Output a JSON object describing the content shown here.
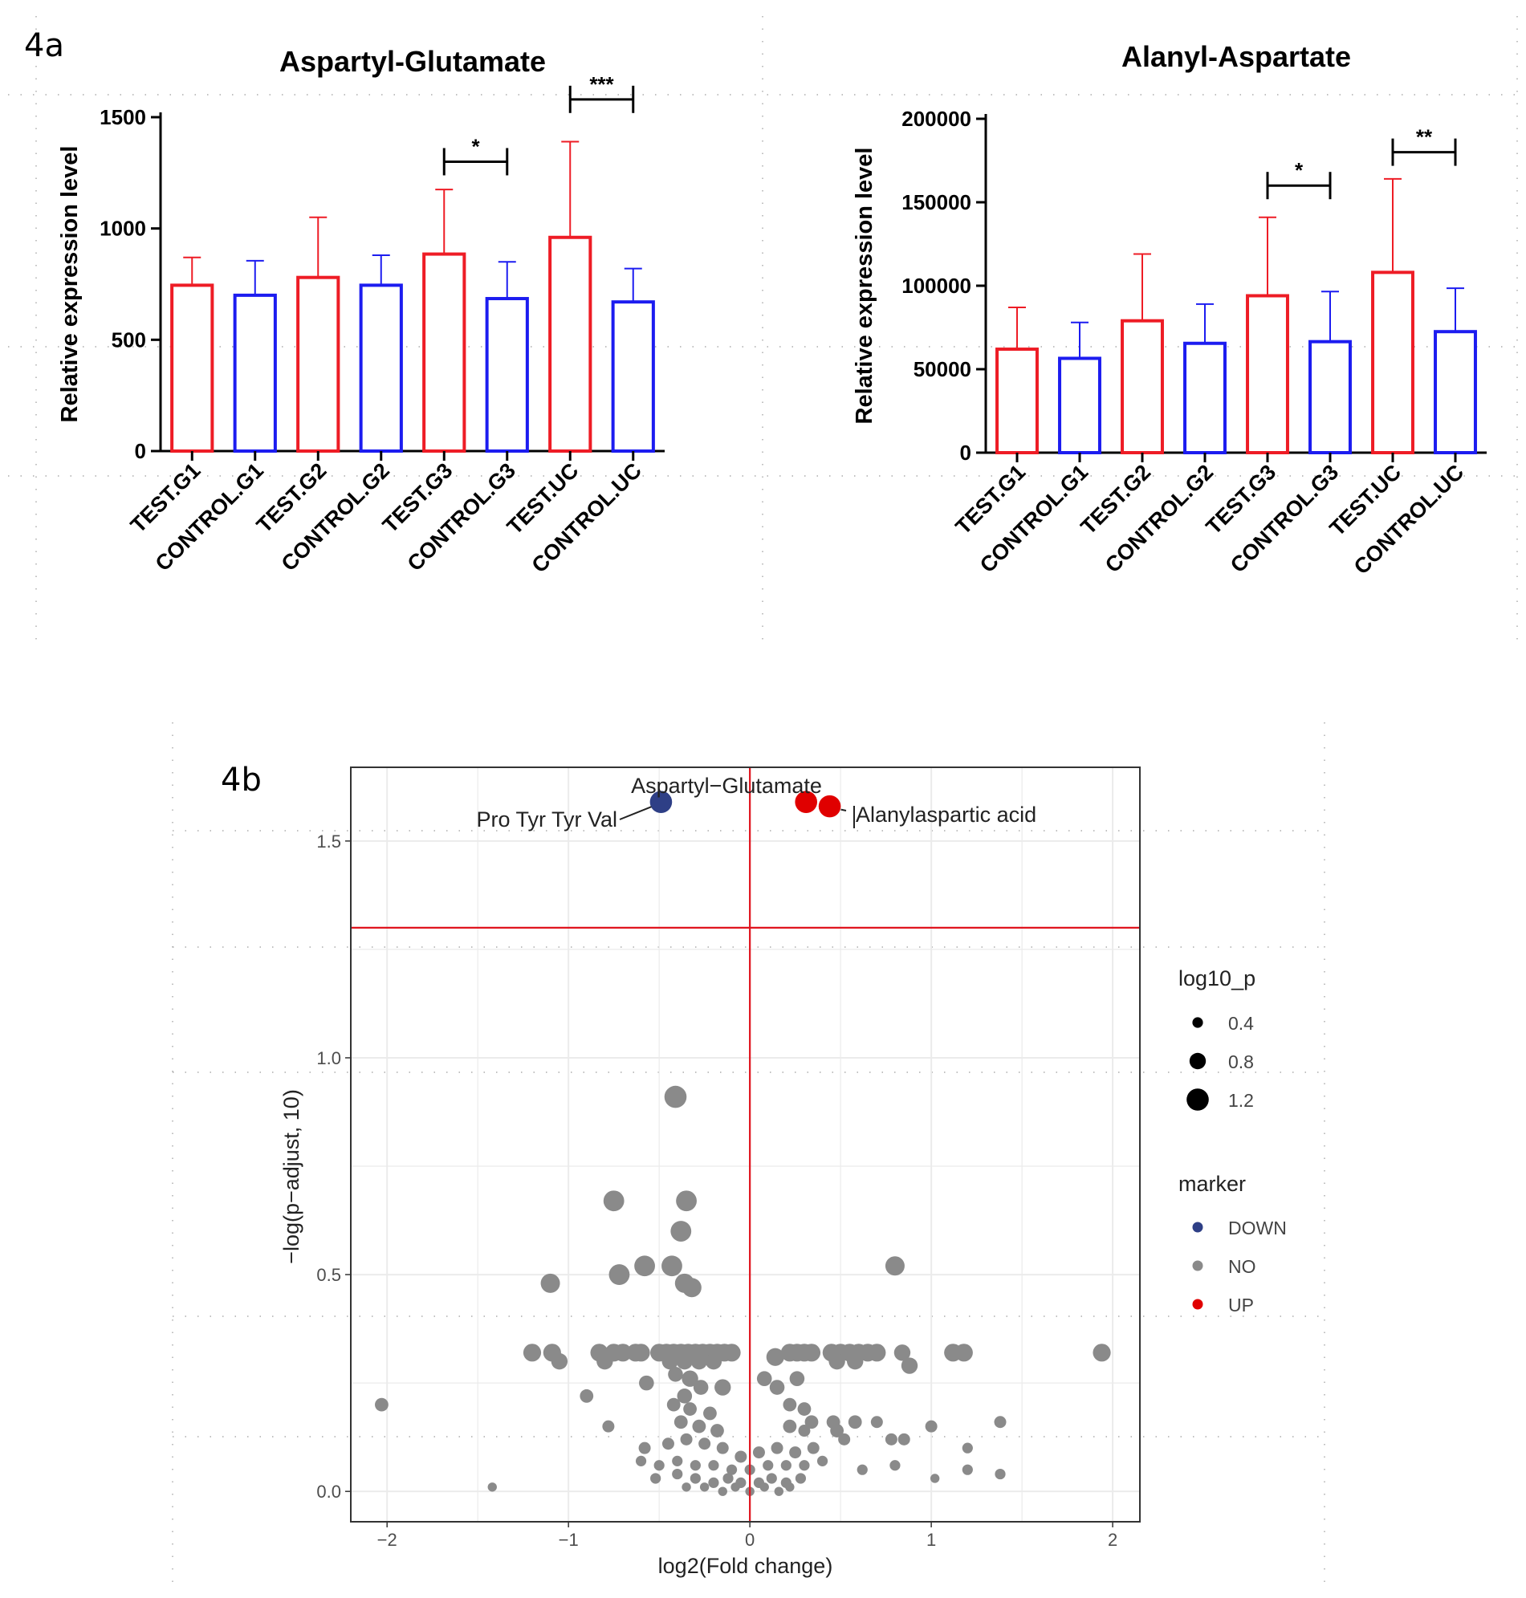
{
  "panels": {
    "a_label": "4a",
    "b_label": "4b"
  },
  "colors": {
    "test": "#ee1c25",
    "control": "#1c1cf0",
    "down": "#2e3f86",
    "no": "#8a8a8a",
    "up": "#e00000",
    "threshold": "#e0141e",
    "grid": "#ebebeb"
  },
  "chart_data": [
    {
      "type": "bar",
      "title": "Aspartyl-Glutamate",
      "xlabel": "",
      "ylabel": "Relative expression level",
      "ylim": [
        0,
        1500
      ],
      "yticks": [
        0,
        500,
        1000,
        1500
      ],
      "ytick_labels": [
        "0",
        "500",
        "1000",
        "1500"
      ],
      "categories": [
        "TEST.G1",
        "CONTROL.G1",
        "TEST.G2",
        "CONTROL.G2",
        "TEST.G3",
        "CONTROL.G3",
        "TEST.UC",
        "CONTROL.UC"
      ],
      "groups": [
        "test",
        "control",
        "test",
        "control",
        "test",
        "control",
        "test",
        "control"
      ],
      "values": [
        745,
        700,
        780,
        745,
        885,
        685,
        960,
        670
      ],
      "error_upper": [
        870,
        855,
        1050,
        880,
        1175,
        850,
        1390,
        820
      ],
      "significance": [
        {
          "from": 4,
          "to": 5,
          "y": 1300,
          "label": "*"
        },
        {
          "from": 6,
          "to": 7,
          "y": 1580,
          "label": "***"
        }
      ]
    },
    {
      "type": "bar",
      "title": "Alanyl-Aspartate",
      "xlabel": "",
      "ylabel": "Relative expression level",
      "ylim": [
        0,
        200000
      ],
      "yticks": [
        0,
        50000,
        100000,
        150000,
        200000
      ],
      "ytick_labels": [
        "0",
        "50000",
        "100000",
        "150000",
        "200000"
      ],
      "categories": [
        "TEST.G1",
        "CONTROL.G1",
        "TEST.G2",
        "CONTROL.G2",
        "TEST.G3",
        "CONTROL.G3",
        "TEST.UC",
        "CONTROL.UC"
      ],
      "groups": [
        "test",
        "control",
        "test",
        "control",
        "test",
        "control",
        "test",
        "control"
      ],
      "values": [
        62000,
        56500,
        79000,
        65500,
        94000,
        66500,
        108000,
        72500
      ],
      "error_upper": [
        87000,
        78000,
        119000,
        89000,
        141000,
        96500,
        164000,
        98500
      ],
      "significance": [
        {
          "from": 4,
          "to": 5,
          "y": 160000,
          "label": "*"
        },
        {
          "from": 6,
          "to": 7,
          "y": 180000,
          "label": "**"
        }
      ]
    },
    {
      "type": "scatter",
      "title": "",
      "xlabel": "log2(Fold change)",
      "ylabel": "−log(p−adjust, 10)",
      "xlim": [
        -2.2,
        2.15
      ],
      "ylim": [
        -0.07,
        1.67
      ],
      "xticks": [
        -2,
        -1,
        0,
        1,
        2
      ],
      "xtick_labels": [
        "−2",
        "−1",
        "0",
        "1",
        "2"
      ],
      "yticks": [
        0.0,
        0.5,
        1.0,
        1.5
      ],
      "ytick_labels": [
        "0.0",
        "0.5",
        "1.0",
        "1.5"
      ],
      "thresholds": {
        "x": 0,
        "y": 1.3
      },
      "labels": [
        {
          "text": "Aspartyl−Glutamate",
          "x": 0.38,
          "y": 1.59
        },
        {
          "text": "Pro Tyr Tyr Val",
          "x": -0.49,
          "y": 1.59
        },
        {
          "text": "Alanylaspartic acid",
          "x": 0.44,
          "y": 1.58
        }
      ],
      "legend": {
        "size_title": "log10_p",
        "sizes": [
          {
            "label": "0.4",
            "value": 0.4
          },
          {
            "label": "0.8",
            "value": 0.8
          },
          {
            "label": "1.2",
            "value": 1.2
          }
        ],
        "marker_title": "marker",
        "markers": [
          {
            "label": "DOWN",
            "key": "down"
          },
          {
            "label": "NO",
            "key": "no"
          },
          {
            "label": "UP",
            "key": "up"
          }
        ]
      },
      "points": [
        {
          "x": 0.31,
          "y": 1.59,
          "m": "up",
          "s": 1.2
        },
        {
          "x": 0.44,
          "y": 1.58,
          "m": "up",
          "s": 1.2
        },
        {
          "x": -0.49,
          "y": 1.59,
          "m": "down",
          "s": 1.2
        },
        {
          "x": -0.41,
          "y": 0.91,
          "m": "no",
          "s": 1.2
        },
        {
          "x": -0.35,
          "y": 0.67,
          "m": "no",
          "s": 1.1
        },
        {
          "x": -0.75,
          "y": 0.67,
          "m": "no",
          "s": 1.1
        },
        {
          "x": -0.38,
          "y": 0.6,
          "m": "no",
          "s": 1.1
        },
        {
          "x": -0.58,
          "y": 0.52,
          "m": "no",
          "s": 1.1
        },
        {
          "x": -0.43,
          "y": 0.52,
          "m": "no",
          "s": 1.1
        },
        {
          "x": -0.72,
          "y": 0.5,
          "m": "no",
          "s": 1.1
        },
        {
          "x": -1.1,
          "y": 0.48,
          "m": "no",
          "s": 1.0
        },
        {
          "x": -0.36,
          "y": 0.48,
          "m": "no",
          "s": 1.0
        },
        {
          "x": -0.32,
          "y": 0.47,
          "m": "no",
          "s": 1.0
        },
        {
          "x": 0.8,
          "y": 0.52,
          "m": "no",
          "s": 1.0
        },
        {
          "x": -1.2,
          "y": 0.32,
          "m": "no",
          "s": 0.9
        },
        {
          "x": -1.09,
          "y": 0.32,
          "m": "no",
          "s": 0.9
        },
        {
          "x": -1.05,
          "y": 0.3,
          "m": "no",
          "s": 0.8
        },
        {
          "x": -0.83,
          "y": 0.32,
          "m": "no",
          "s": 0.9
        },
        {
          "x": -0.8,
          "y": 0.3,
          "m": "no",
          "s": 0.8
        },
        {
          "x": -0.75,
          "y": 0.32,
          "m": "no",
          "s": 0.9
        },
        {
          "x": -0.7,
          "y": 0.32,
          "m": "no",
          "s": 0.9
        },
        {
          "x": -0.63,
          "y": 0.32,
          "m": "no",
          "s": 0.9
        },
        {
          "x": -0.6,
          "y": 0.32,
          "m": "no",
          "s": 0.9
        },
        {
          "x": -0.5,
          "y": 0.32,
          "m": "no",
          "s": 0.9
        },
        {
          "x": -0.46,
          "y": 0.32,
          "m": "no",
          "s": 0.9
        },
        {
          "x": -0.42,
          "y": 0.32,
          "m": "no",
          "s": 0.9
        },
        {
          "x": -0.38,
          "y": 0.32,
          "m": "no",
          "s": 0.9
        },
        {
          "x": -0.34,
          "y": 0.32,
          "m": "no",
          "s": 0.9
        },
        {
          "x": -0.3,
          "y": 0.32,
          "m": "no",
          "s": 0.9
        },
        {
          "x": -0.26,
          "y": 0.32,
          "m": "no",
          "s": 0.9
        },
        {
          "x": -0.22,
          "y": 0.32,
          "m": "no",
          "s": 0.9
        },
        {
          "x": -0.18,
          "y": 0.32,
          "m": "no",
          "s": 0.9
        },
        {
          "x": -0.14,
          "y": 0.32,
          "m": "no",
          "s": 0.9
        },
        {
          "x": -0.1,
          "y": 0.32,
          "m": "no",
          "s": 0.9
        },
        {
          "x": -0.44,
          "y": 0.3,
          "m": "no",
          "s": 0.8
        },
        {
          "x": -0.36,
          "y": 0.3,
          "m": "no",
          "s": 0.8
        },
        {
          "x": -0.28,
          "y": 0.3,
          "m": "no",
          "s": 0.8
        },
        {
          "x": -0.2,
          "y": 0.3,
          "m": "no",
          "s": 0.8
        },
        {
          "x": 0.14,
          "y": 0.31,
          "m": "no",
          "s": 0.9
        },
        {
          "x": 0.22,
          "y": 0.32,
          "m": "no",
          "s": 0.9
        },
        {
          "x": 0.26,
          "y": 0.32,
          "m": "no",
          "s": 0.9
        },
        {
          "x": 0.3,
          "y": 0.32,
          "m": "no",
          "s": 0.9
        },
        {
          "x": 0.34,
          "y": 0.32,
          "m": "no",
          "s": 0.9
        },
        {
          "x": 0.45,
          "y": 0.32,
          "m": "no",
          "s": 0.9
        },
        {
          "x": 0.5,
          "y": 0.32,
          "m": "no",
          "s": 0.9
        },
        {
          "x": 0.55,
          "y": 0.32,
          "m": "no",
          "s": 0.9
        },
        {
          "x": 0.6,
          "y": 0.32,
          "m": "no",
          "s": 0.9
        },
        {
          "x": 0.65,
          "y": 0.32,
          "m": "no",
          "s": 0.9
        },
        {
          "x": 0.7,
          "y": 0.32,
          "m": "no",
          "s": 0.9
        },
        {
          "x": 0.48,
          "y": 0.3,
          "m": "no",
          "s": 0.8
        },
        {
          "x": 0.58,
          "y": 0.3,
          "m": "no",
          "s": 0.8
        },
        {
          "x": 0.84,
          "y": 0.32,
          "m": "no",
          "s": 0.8
        },
        {
          "x": 0.88,
          "y": 0.29,
          "m": "no",
          "s": 0.8
        },
        {
          "x": 1.12,
          "y": 0.32,
          "m": "no",
          "s": 0.9
        },
        {
          "x": 1.18,
          "y": 0.32,
          "m": "no",
          "s": 0.9
        },
        {
          "x": 1.94,
          "y": 0.32,
          "m": "no",
          "s": 0.9
        },
        {
          "x": -0.57,
          "y": 0.25,
          "m": "no",
          "s": 0.7
        },
        {
          "x": -0.41,
          "y": 0.27,
          "m": "no",
          "s": 0.7
        },
        {
          "x": -0.33,
          "y": 0.26,
          "m": "no",
          "s": 0.8
        },
        {
          "x": -0.27,
          "y": 0.24,
          "m": "no",
          "s": 0.7
        },
        {
          "x": -0.15,
          "y": 0.24,
          "m": "no",
          "s": 0.8
        },
        {
          "x": 0.08,
          "y": 0.26,
          "m": "no",
          "s": 0.7
        },
        {
          "x": 0.15,
          "y": 0.24,
          "m": "no",
          "s": 0.7
        },
        {
          "x": 0.26,
          "y": 0.26,
          "m": "no",
          "s": 0.7
        },
        {
          "x": -0.36,
          "y": 0.22,
          "m": "no",
          "s": 0.7
        },
        {
          "x": -0.9,
          "y": 0.22,
          "m": "no",
          "s": 0.6
        },
        {
          "x": -2.03,
          "y": 0.2,
          "m": "no",
          "s": 0.6
        },
        {
          "x": -0.78,
          "y": 0.15,
          "m": "no",
          "s": 0.5
        },
        {
          "x": -0.42,
          "y": 0.2,
          "m": "no",
          "s": 0.6
        },
        {
          "x": -0.33,
          "y": 0.19,
          "m": "no",
          "s": 0.6
        },
        {
          "x": -0.22,
          "y": 0.18,
          "m": "no",
          "s": 0.6
        },
        {
          "x": -0.38,
          "y": 0.16,
          "m": "no",
          "s": 0.6
        },
        {
          "x": -0.28,
          "y": 0.15,
          "m": "no",
          "s": 0.6
        },
        {
          "x": -0.18,
          "y": 0.14,
          "m": "no",
          "s": 0.6
        },
        {
          "x": 0.22,
          "y": 0.2,
          "m": "no",
          "s": 0.6
        },
        {
          "x": 0.3,
          "y": 0.19,
          "m": "no",
          "s": 0.6
        },
        {
          "x": 0.34,
          "y": 0.16,
          "m": "no",
          "s": 0.6
        },
        {
          "x": 0.46,
          "y": 0.16,
          "m": "no",
          "s": 0.6
        },
        {
          "x": 0.48,
          "y": 0.14,
          "m": "no",
          "s": 0.6
        },
        {
          "x": 0.58,
          "y": 0.16,
          "m": "no",
          "s": 0.6
        },
        {
          "x": 0.7,
          "y": 0.16,
          "m": "no",
          "s": 0.5
        },
        {
          "x": 0.22,
          "y": 0.15,
          "m": "no",
          "s": 0.6
        },
        {
          "x": 0.3,
          "y": 0.14,
          "m": "no",
          "s": 0.5
        },
        {
          "x": 0.52,
          "y": 0.12,
          "m": "no",
          "s": 0.5
        },
        {
          "x": 0.78,
          "y": 0.12,
          "m": "no",
          "s": 0.5
        },
        {
          "x": 1.0,
          "y": 0.15,
          "m": "no",
          "s": 0.5
        },
        {
          "x": 1.38,
          "y": 0.16,
          "m": "no",
          "s": 0.5
        },
        {
          "x": 0.85,
          "y": 0.12,
          "m": "no",
          "s": 0.5
        },
        {
          "x": 1.2,
          "y": 0.1,
          "m": "no",
          "s": 0.4
        },
        {
          "x": -0.58,
          "y": 0.1,
          "m": "no",
          "s": 0.5
        },
        {
          "x": -0.45,
          "y": 0.11,
          "m": "no",
          "s": 0.5
        },
        {
          "x": -0.35,
          "y": 0.12,
          "m": "no",
          "s": 0.5
        },
        {
          "x": -0.25,
          "y": 0.11,
          "m": "no",
          "s": 0.5
        },
        {
          "x": -0.15,
          "y": 0.1,
          "m": "no",
          "s": 0.5
        },
        {
          "x": -0.05,
          "y": 0.08,
          "m": "no",
          "s": 0.5
        },
        {
          "x": 0.05,
          "y": 0.09,
          "m": "no",
          "s": 0.5
        },
        {
          "x": 0.15,
          "y": 0.1,
          "m": "no",
          "s": 0.5
        },
        {
          "x": 0.25,
          "y": 0.09,
          "m": "no",
          "s": 0.5
        },
        {
          "x": 0.35,
          "y": 0.1,
          "m": "no",
          "s": 0.5
        },
        {
          "x": -0.6,
          "y": 0.07,
          "m": "no",
          "s": 0.4
        },
        {
          "x": -0.5,
          "y": 0.06,
          "m": "no",
          "s": 0.4
        },
        {
          "x": -0.4,
          "y": 0.07,
          "m": "no",
          "s": 0.4
        },
        {
          "x": -0.3,
          "y": 0.06,
          "m": "no",
          "s": 0.4
        },
        {
          "x": -0.2,
          "y": 0.06,
          "m": "no",
          "s": 0.4
        },
        {
          "x": -0.1,
          "y": 0.05,
          "m": "no",
          "s": 0.4
        },
        {
          "x": 0.0,
          "y": 0.05,
          "m": "no",
          "s": 0.4
        },
        {
          "x": 0.1,
          "y": 0.06,
          "m": "no",
          "s": 0.4
        },
        {
          "x": 0.2,
          "y": 0.06,
          "m": "no",
          "s": 0.4
        },
        {
          "x": 0.3,
          "y": 0.06,
          "m": "no",
          "s": 0.4
        },
        {
          "x": 0.4,
          "y": 0.07,
          "m": "no",
          "s": 0.4
        },
        {
          "x": -0.52,
          "y": 0.03,
          "m": "no",
          "s": 0.4
        },
        {
          "x": -0.4,
          "y": 0.04,
          "m": "no",
          "s": 0.4
        },
        {
          "x": -0.3,
          "y": 0.03,
          "m": "no",
          "s": 0.4
        },
        {
          "x": -0.2,
          "y": 0.02,
          "m": "no",
          "s": 0.4
        },
        {
          "x": -0.12,
          "y": 0.03,
          "m": "no",
          "s": 0.4
        },
        {
          "x": -0.05,
          "y": 0.02,
          "m": "no",
          "s": 0.4
        },
        {
          "x": 0.05,
          "y": 0.02,
          "m": "no",
          "s": 0.4
        },
        {
          "x": 0.12,
          "y": 0.03,
          "m": "no",
          "s": 0.4
        },
        {
          "x": 0.2,
          "y": 0.02,
          "m": "no",
          "s": 0.4
        },
        {
          "x": 0.28,
          "y": 0.03,
          "m": "no",
          "s": 0.4
        },
        {
          "x": -0.35,
          "y": 0.01,
          "m": "no",
          "s": 0.3
        },
        {
          "x": -0.25,
          "y": 0.01,
          "m": "no",
          "s": 0.3
        },
        {
          "x": -0.15,
          "y": 0.0,
          "m": "no",
          "s": 0.3
        },
        {
          "x": -0.08,
          "y": 0.01,
          "m": "no",
          "s": 0.3
        },
        {
          "x": 0.0,
          "y": 0.0,
          "m": "no",
          "s": 0.3
        },
        {
          "x": 0.08,
          "y": 0.01,
          "m": "no",
          "s": 0.3
        },
        {
          "x": 0.16,
          "y": 0.0,
          "m": "no",
          "s": 0.3
        },
        {
          "x": 0.22,
          "y": 0.01,
          "m": "no",
          "s": 0.3
        },
        {
          "x": -1.42,
          "y": 0.01,
          "m": "no",
          "s": 0.3
        },
        {
          "x": 0.62,
          "y": 0.05,
          "m": "no",
          "s": 0.4
        },
        {
          "x": 0.8,
          "y": 0.06,
          "m": "no",
          "s": 0.4
        },
        {
          "x": 1.2,
          "y": 0.05,
          "m": "no",
          "s": 0.4
        },
        {
          "x": 1.38,
          "y": 0.04,
          "m": "no",
          "s": 0.4
        },
        {
          "x": 1.02,
          "y": 0.03,
          "m": "no",
          "s": 0.3
        }
      ]
    }
  ]
}
